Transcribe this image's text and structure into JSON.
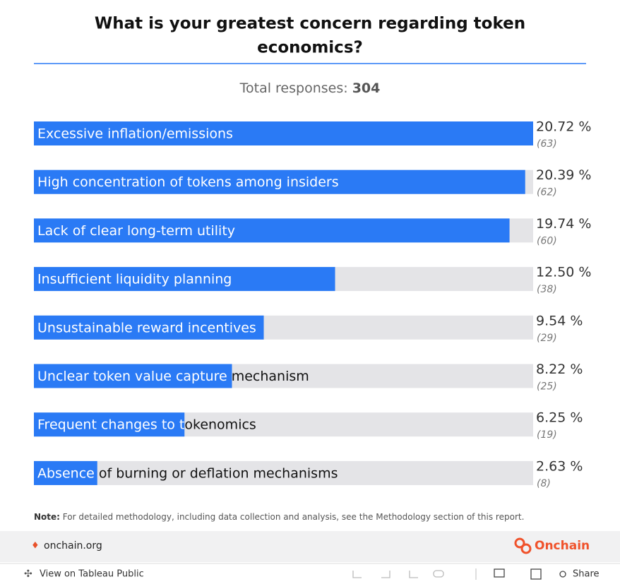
{
  "chart_data": {
    "type": "bar",
    "orientation": "horizontal",
    "title": "What is your greatest concern regarding token economics?",
    "subtitle_label": "Total responses:",
    "total_responses": 304,
    "categories": [
      "Excessive inflation/emissions",
      "High concentration of tokens among insiders",
      "Lack of clear long-term utility",
      "Insufficient liquidity planning",
      "Unsustainable reward incentives",
      "Unclear token value capture mechanism",
      "Frequent changes to tokenomics",
      "Absence of burning or deflation mechanisms"
    ],
    "values": [
      20.72,
      20.39,
      19.74,
      12.5,
      9.54,
      8.22,
      6.25,
      2.63
    ],
    "value_labels": [
      "20.72 %",
      "20.39 %",
      "19.74 %",
      "12.50 %",
      "9.54 %",
      "8.22 %",
      "6.25 %",
      "2.63 %"
    ],
    "count_labels": [
      "(63)",
      "(62)",
      "(60)",
      "(38)",
      "(29)",
      "(25)",
      "(19)",
      "(8)"
    ],
    "xlim": [
      0,
      20.72
    ],
    "color": "#2a7af5",
    "track_color": "#e4e4e7",
    "note_label": "Note:",
    "note": "For detailed methodology, including data collection and analysis, see the Methodology section of this report."
  },
  "footer": {
    "site": "onchain.org",
    "brand": "Onchain"
  },
  "toolbar": {
    "view": "View on Tableau Public",
    "share": "Share"
  }
}
